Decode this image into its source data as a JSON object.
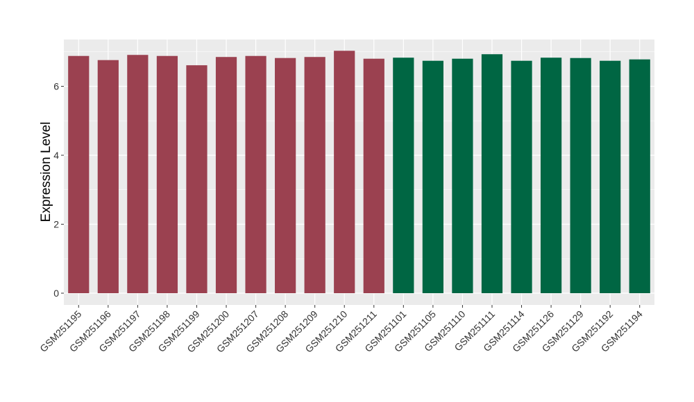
{
  "chart_data": {
    "type": "bar",
    "title": "",
    "xlabel": "",
    "ylabel": "Expression Level",
    "ylim": [
      -0.3,
      7.2
    ],
    "yticks": [
      0,
      2,
      4,
      6
    ],
    "grid": true,
    "legend": "none",
    "categories": [
      "GSM251195",
      "GSM251196",
      "GSM251197",
      "GSM251198",
      "GSM251199",
      "GSM251200",
      "GSM251207",
      "GSM251208",
      "GSM251209",
      "GSM251210",
      "GSM251211",
      "GSM251101",
      "GSM251105",
      "GSM251110",
      "GSM251111",
      "GSM251114",
      "GSM251126",
      "GSM251129",
      "GSM251192",
      "GSM251194"
    ],
    "values": [
      6.88,
      6.76,
      6.91,
      6.88,
      6.61,
      6.85,
      6.88,
      6.82,
      6.85,
      7.03,
      6.8,
      6.83,
      6.74,
      6.8,
      6.93,
      6.74,
      6.83,
      6.82,
      6.74,
      6.78
    ],
    "group_colors": [
      "#9b4150",
      "#9b4150",
      "#9b4150",
      "#9b4150",
      "#9b4150",
      "#9b4150",
      "#9b4150",
      "#9b4150",
      "#9b4150",
      "#9b4150",
      "#9b4150",
      "#006643",
      "#006643",
      "#006643",
      "#006643",
      "#006643",
      "#006643",
      "#006643",
      "#006643",
      "#006643"
    ],
    "panel_color": "#ebebeb",
    "grid_color": "#ffffff"
  }
}
